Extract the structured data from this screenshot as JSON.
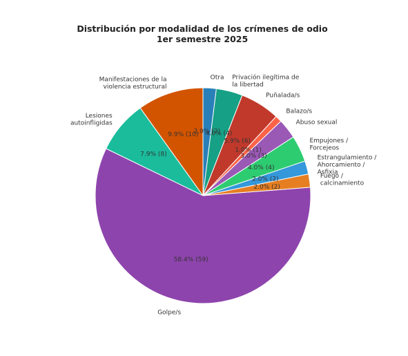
{
  "chart_data": {
    "type": "pie",
    "title": [
      "Distribución por modalidad de los crímenes de odio",
      "1er semestre 2025"
    ],
    "start_angle_deg": 90,
    "direction": "counterclockwise",
    "slices": [
      {
        "label": "Manifestaciones de la violencia estructural",
        "label_lines": [
          "Manifestaciones de la",
          "violencia estructural"
        ],
        "value": 10,
        "pct_text": "9.9% (10)",
        "color": "#d35400"
      },
      {
        "label": "Lesiones autoinfligidas",
        "label_lines": [
          "Lesiones",
          "autoinfligidas"
        ],
        "value": 8,
        "pct_text": "7.9% (8)",
        "color": "#1abc9c"
      },
      {
        "label": "Golpe/s",
        "label_lines": [
          "Golpe/s"
        ],
        "value": 59,
        "pct_text": "58.4% (59)",
        "color": "#8e44ad"
      },
      {
        "label": "Fuego / calcinamiento",
        "label_lines": [
          "Fuego /",
          "calcinamiento"
        ],
        "value": 2,
        "pct_text": "2.0% (2)",
        "color": "#e67e22"
      },
      {
        "label": "Estrangulamiento / Ahorcamiento / Asfixia",
        "label_lines": [
          "Estrangulamiento /",
          "Ahorcamiento /",
          "Asfixia"
        ],
        "value": 2,
        "pct_text": "2.0% (2)",
        "color": "#3498db"
      },
      {
        "label": "Empujones / Forcejeos",
        "label_lines": [
          "Empujones /",
          "Forcejeos"
        ],
        "value": 4,
        "pct_text": "4.0% (4)",
        "color": "#2ecc71"
      },
      {
        "label": "Abuso sexual",
        "label_lines": [
          "Abuso sexual"
        ],
        "value": 3,
        "pct_text": "3.0% (3)",
        "color": "#9b59b6"
      },
      {
        "label": "Balazo/s",
        "label_lines": [
          "Balazo/s"
        ],
        "value": 1,
        "pct_text": "1.0% (1)",
        "color": "#ff6347"
      },
      {
        "label": "Puñalada/s",
        "label_lines": [
          "Puñalada/s"
        ],
        "value": 6,
        "pct_text": "5.9% (6)",
        "color": "#c0392b"
      },
      {
        "label": "Privación ilegítima de la libertad",
        "label_lines": [
          "Privación ilegítima de",
          "la libertad"
        ],
        "value": 4,
        "pct_text": "4.0% (4)",
        "color": "#16a085"
      },
      {
        "label": "Otra",
        "label_lines": [
          "Otra"
        ],
        "value": 2,
        "pct_text": "2.0% (2)",
        "color": "#2980b9"
      }
    ],
    "legend": "none"
  }
}
